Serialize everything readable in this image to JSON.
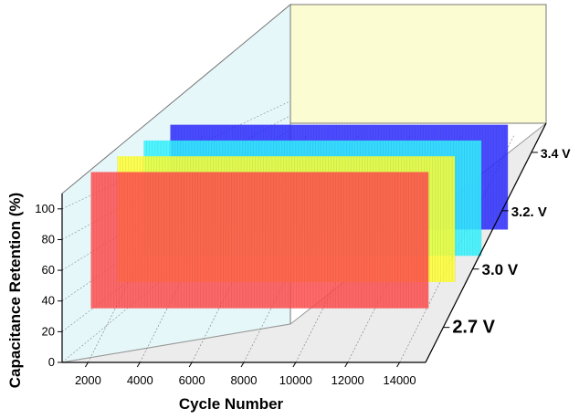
{
  "chart_data": {
    "type": "bar",
    "title": "",
    "xlabel": "Cycle Number",
    "ylabel": "Capacitance Retention (%)",
    "zlabel": "",
    "x_ticks": [
      2000,
      4000,
      6000,
      8000,
      10000,
      12000,
      14000
    ],
    "y_ticks": [
      0,
      20,
      40,
      60,
      80,
      100
    ],
    "xlim": [
      1000,
      15000
    ],
    "ylim": [
      0,
      110
    ],
    "depth_categories": [
      "2.7 V",
      "3.0 V",
      "3.2. V",
      "3.4 V"
    ],
    "x_range": [
      1500,
      14500
    ],
    "series": [
      {
        "name": "2.7 V",
        "color": "#ff4d4d",
        "values": [
          100
        ]
      },
      {
        "name": "3.0 V",
        "color": "#ffff33",
        "values": [
          100
        ]
      },
      {
        "name": "3.2. V",
        "color": "#33f3ff",
        "values": [
          100
        ]
      },
      {
        "name": "3.4 V",
        "color": "#2b2bff",
        "values": [
          100
        ]
      }
    ],
    "grid": true,
    "legend": "none"
  }
}
